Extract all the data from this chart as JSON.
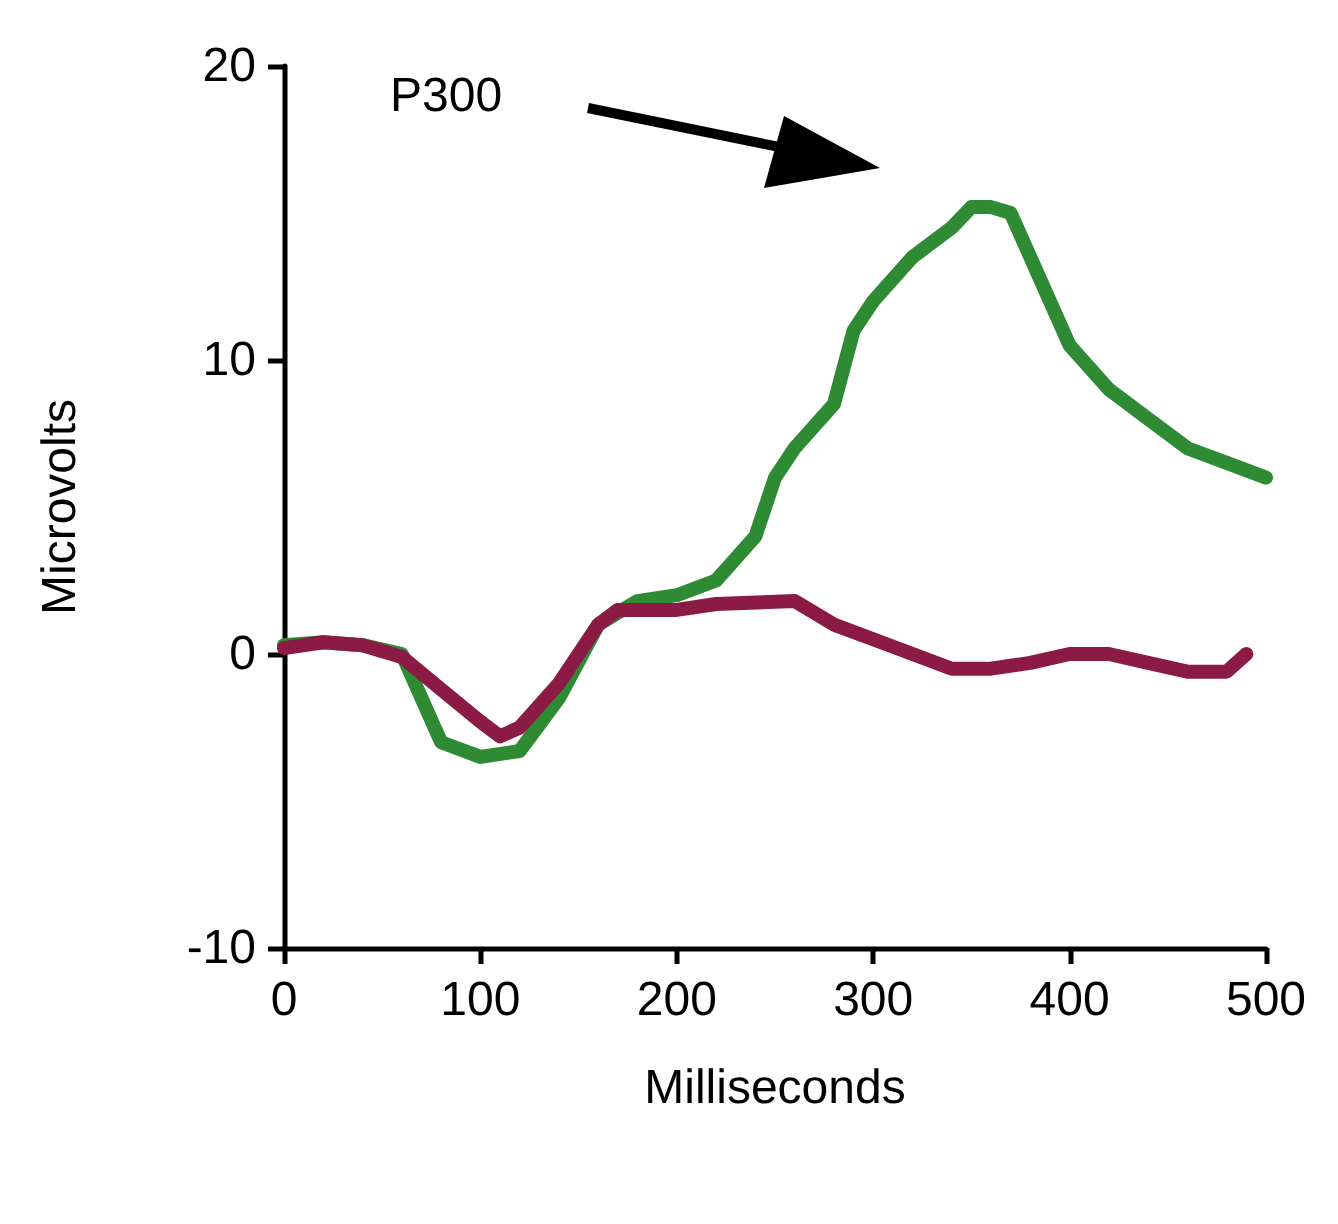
{
  "chart_data": {
    "type": "line",
    "xlabel": "Milliseconds",
    "ylabel": "Microvolts",
    "xlim": [
      0,
      500
    ],
    "xticks": [
      0,
      100,
      200,
      300,
      400,
      500
    ],
    "ylim": [
      -10,
      20
    ],
    "yticks": [
      -10,
      0,
      10,
      20
    ],
    "grid": false,
    "marker": "none",
    "line_style": "solid",
    "annotations": [
      "P300"
    ],
    "series": [
      {
        "color": "#2e8b34",
        "x": [
          0,
          20,
          40,
          60,
          70,
          80,
          100,
          120,
          140,
          160,
          180,
          200,
          220,
          240,
          250,
          260,
          280,
          290,
          300,
          320,
          340,
          350,
          360,
          370,
          380,
          400,
          420,
          440,
          460,
          480,
          500
        ],
        "values": [
          0.3,
          0.4,
          0.3,
          0,
          -1.5,
          -3,
          -3.5,
          -3.3,
          -1.5,
          1,
          1.8,
          2,
          2.5,
          4,
          6,
          7,
          8.5,
          11,
          12,
          13.5,
          14.5,
          15.2,
          15.2,
          15,
          13.5,
          10.5,
          9,
          8,
          7,
          6.5,
          6
        ]
      },
      {
        "color": "#8b1a44",
        "x": [
          0,
          20,
          40,
          60,
          80,
          100,
          110,
          120,
          140,
          160,
          170,
          200,
          220,
          260,
          280,
          300,
          320,
          340,
          360,
          380,
          400,
          420,
          440,
          460,
          480,
          490
        ],
        "values": [
          0.2,
          0.4,
          0.3,
          -0.1,
          -1.2,
          -2.3,
          -2.8,
          -2.5,
          -1,
          1,
          1.5,
          1.5,
          1.7,
          1.8,
          1,
          0.5,
          0,
          -0.5,
          -0.5,
          -0.3,
          0,
          0,
          -0.3,
          -0.6,
          -0.6,
          0
        ]
      }
    ]
  }
}
